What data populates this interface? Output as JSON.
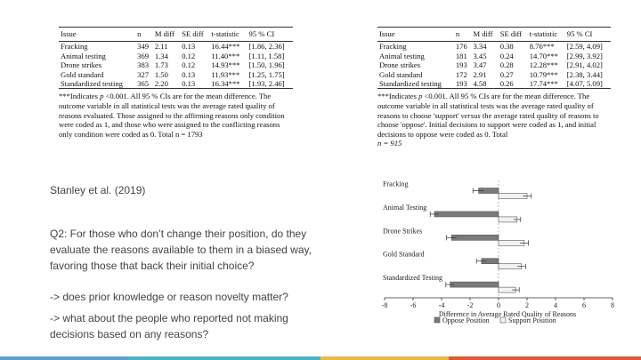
{
  "left_table": {
    "headers": [
      "Issue",
      "n",
      "M diff",
      "SE diff",
      "t-statistic",
      "95 % CI"
    ],
    "rows": [
      [
        "Fracking",
        "349",
        "2.11",
        "0.13",
        "16.44***",
        "[1.86, 2.36]"
      ],
      [
        "Animal testing",
        "369",
        "1.34",
        "0.12",
        "11.40***",
        "[1.11, 1.58]"
      ],
      [
        "Drone strikes",
        "383",
        "1.73",
        "0.12",
        "14.93***",
        "[1.50, 1.96]"
      ],
      [
        "Gold standard",
        "327",
        "1.50",
        "0.13",
        "11.93***",
        "[1.25, 1.75]"
      ],
      [
        "Standardized testing",
        "365",
        "2.20",
        "0.13",
        "16.34***",
        "[1.93, 2.46]"
      ]
    ],
    "note_a": "***Indicates ",
    "note_b": "p",
    "note_c": " <0.001. All 95 % CIs are for the mean difference. The outcome variable in all statistical tests was the average rated quality of reasons evaluated. Those assigned to the affirming reasons only condition were coded as 1, and those who were assigned to the conflicting reasons only condition were coded as 0. Total n = 1793"
  },
  "right_table": {
    "headers": [
      "Issue",
      "n",
      "M diff",
      "SE diff",
      "t-statistic",
      "95 % CI"
    ],
    "rows": [
      [
        "Fracking",
        "176",
        "3.34",
        "0.38",
        "8.76***",
        "[2.59, 4.09]"
      ],
      [
        "Animal testing",
        "181",
        "3.45",
        "0.24",
        "14.70***",
        "[2.99, 3.92]"
      ],
      [
        "Drone strikes",
        "193",
        "3.47",
        "0.28",
        "12.28***",
        "[2.91, 4.02]"
      ],
      [
        "Gold standard",
        "172",
        "2.91",
        "0.27",
        "10.79***",
        "[2.38, 3.44]"
      ],
      [
        "Standardized testing",
        "193",
        "4.58",
        "0.26",
        "17.74***",
        "[4.07, 5.09]"
      ]
    ],
    "note_a": "***Indicates ",
    "note_b": "p",
    "note_c": " <0.001. All 95 % CIs are for the mean difference. The outcome variable in all statistical tests was the average rated quality of reasons to choose 'support' ",
    "note_d": "versus",
    "note_e": " the average rated quality of reasons to choose 'oppose'. Initial decisions to support were coded as 1, and initial decisions to oppose were coded as 0. Total",
    "note_f": "n = 915"
  },
  "text": {
    "citation": "Stanley et al. (2019)",
    "q2": "Q2: For those who don’t change their position, do they evaluate the reasons available to them in a biased way, favoring those that back their initial choice?",
    "point1": "-> does prior knowledge or reason novelty matter?",
    "point2": "-> what about the people who reported not making decisions based on any reasons?"
  },
  "chart_data": {
    "type": "bar",
    "orientation": "horizontal",
    "categories": [
      "Fracking",
      "Animal Testing",
      "Drone Strikes",
      "Gold Standard",
      "Standardized Testing"
    ],
    "series": [
      {
        "name": "Oppose Position",
        "values": [
          -1.4,
          -4.5,
          -3.3,
          -1.2,
          -3.4
        ],
        "err": [
          0.4,
          0.3,
          0.35,
          0.35,
          0.3
        ]
      },
      {
        "name": "Support Position",
        "values": [
          2.0,
          1.3,
          1.8,
          1.6,
          1.2
        ],
        "err": [
          0.3,
          0.25,
          0.3,
          0.3,
          0.25
        ]
      }
    ],
    "xlabel": "Difference in Average Rated Quality of Reasons",
    "xticks": [
      "-8",
      "-6",
      "-4",
      "-2",
      "0",
      "2",
      "4",
      "6",
      "8"
    ],
    "xlim": [
      -8,
      8
    ],
    "legend": "bottom"
  },
  "colors": {
    "oppose_fill": "#7a7a7a",
    "support_fill": "#f2f2f2",
    "bar_stroke": "#555555",
    "bottom_bar": [
      "#5aa0d8",
      "#5aa0d8",
      "#4ab3c9",
      "#f0b841",
      "#e35a2d"
    ]
  }
}
